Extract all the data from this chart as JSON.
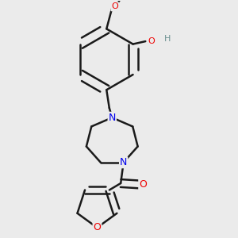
{
  "bg_color": "#ebebeb",
  "atom_colors": {
    "C": "#1a1a1a",
    "N": "#0000ee",
    "O": "#ee0000",
    "H": "#6a9090"
  },
  "bond_color": "#1a1a1a",
  "bond_width": 1.8,
  "figsize": [
    3.0,
    3.0
  ],
  "dpi": 100
}
